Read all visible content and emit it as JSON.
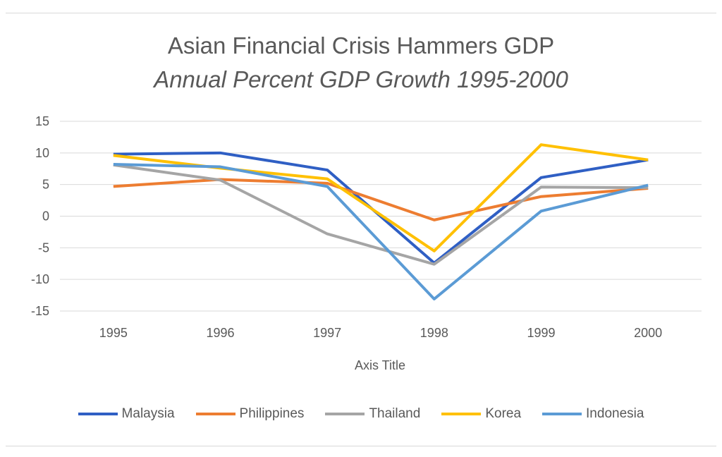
{
  "chart_data": {
    "type": "line",
    "title": "Asian Financial Crisis Hammers GDP",
    "subtitle": "Annual  Percent GDP Growth 1995-2000",
    "xlabel": "Axis Title",
    "ylabel": "",
    "categories": [
      "1995",
      "1996",
      "1997",
      "1998",
      "1999",
      "2000"
    ],
    "ylim": [
      -15,
      15
    ],
    "yticks": [
      15,
      10,
      5,
      0,
      -5,
      -10,
      -15
    ],
    "grid": true,
    "legend_position": "bottom",
    "series": [
      {
        "name": "Malaysia",
        "color": "#2f5fc4",
        "values": [
          9.8,
          10.0,
          7.3,
          -7.4,
          6.1,
          8.9
        ]
      },
      {
        "name": "Philippines",
        "color": "#ed7d31",
        "values": [
          4.7,
          5.8,
          5.2,
          -0.6,
          3.1,
          4.4
        ]
      },
      {
        "name": "Thailand",
        "color": "#a5a5a5",
        "values": [
          8.1,
          5.7,
          -2.8,
          -7.6,
          4.6,
          4.5
        ]
      },
      {
        "name": "Korea",
        "color": "#ffc000",
        "values": [
          9.6,
          7.6,
          5.9,
          -5.5,
          11.3,
          8.9
        ]
      },
      {
        "name": "Indonesia",
        "color": "#5b9bd5",
        "values": [
          8.2,
          7.8,
          4.7,
          -13.1,
          0.8,
          4.9
        ]
      }
    ]
  }
}
